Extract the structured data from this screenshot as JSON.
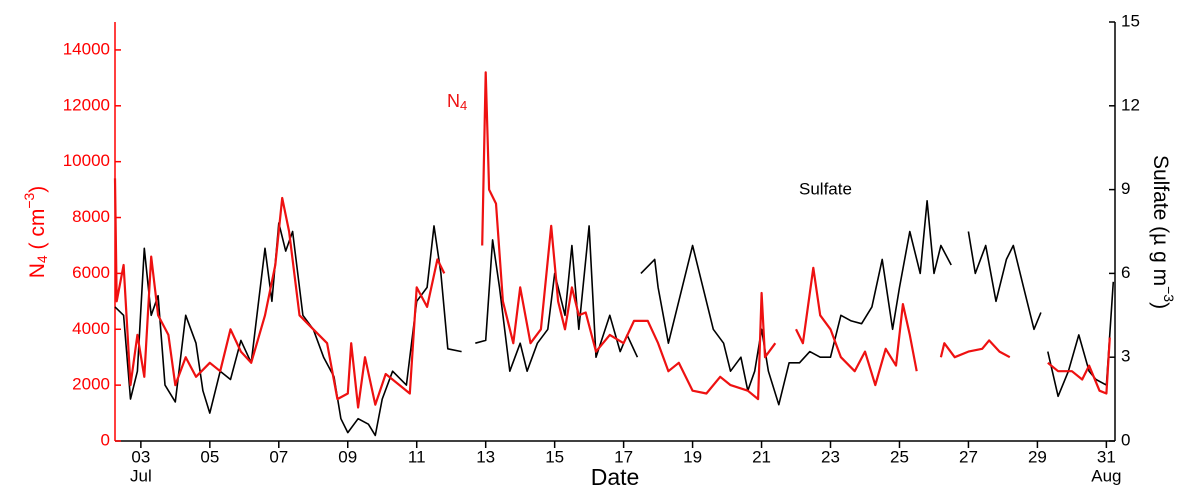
{
  "chart_data": {
    "type": "line",
    "x_label": "Date",
    "y_label": [
      "N",
      "4",
      " ( cm",
      "−3",
      ")"
    ],
    "y2_label": [
      "Sulfate (µ g m",
      "−3",
      ")"
    ],
    "annotations": [
      [
        "N",
        "4"
      ],
      [
        "Sulfate"
      ]
    ],
    "xlim": [
      2.25,
      31.25
    ],
    "xticks": [
      {
        "value": 3,
        "label": "03"
      },
      {
        "value": 5,
        "label": "05"
      },
      {
        "value": 7,
        "label": "07"
      },
      {
        "value": 9,
        "label": "09"
      },
      11,
      13,
      15,
      17,
      19,
      21,
      23,
      25,
      27,
      29,
      31
    ],
    "x_month_labels": [
      "Jul",
      "Aug"
    ],
    "ylim": [
      0,
      15000
    ],
    "yticks": [
      0,
      2000,
      4000,
      6000,
      8000,
      10000,
      12000,
      14000
    ],
    "y2lim": [
      0,
      15
    ],
    "y2ticks": [
      0,
      3,
      6,
      9,
      12,
      15
    ],
    "left_axis_color": "#ff0000",
    "right_axis_color": "#000000",
    "series": [
      {
        "name": "N4",
        "color": "#ee1111",
        "x": [
          2.25,
          2.3,
          2.5,
          2.7,
          2.9,
          3.1,
          3.3,
          3.5,
          3.8,
          4.0,
          4.3,
          4.6,
          5.0,
          5.3,
          5.6,
          5.9,
          6.2,
          6.6,
          6.9,
          7.1,
          7.3,
          7.6,
          8.0,
          8.4,
          8.7,
          9.0,
          9.1,
          9.3,
          9.5,
          9.8,
          10.1,
          10.5,
          10.8,
          11.0,
          11.3,
          11.6,
          11.8,
          12.3,
          12.9,
          13.0,
          13.1,
          13.3,
          13.5,
          13.8,
          14.0,
          14.3,
          14.6,
          14.9,
          15.1,
          15.3,
          15.5,
          15.7,
          15.9,
          16.2,
          16.6,
          17.0,
          17.3,
          17.7,
          18.0,
          18.3,
          18.6,
          19.0,
          19.4,
          19.8,
          20.1,
          20.6,
          20.9,
          21.0,
          21.1,
          21.4,
          21.7,
          22.0,
          22.2,
          22.5,
          22.7,
          23.0,
          23.3,
          23.7,
          24.0,
          24.3,
          24.6,
          24.9,
          25.1,
          25.3,
          25.5,
          25.8,
          26.2,
          26.3,
          26.6,
          27.0,
          27.4,
          27.6,
          27.9,
          28.2,
          28.7,
          29.3,
          29.6,
          30.0,
          30.3,
          30.5,
          30.8,
          31.0,
          31.1
        ],
        "values": [
          9400,
          5000,
          6300,
          2000,
          3800,
          2300,
          6600,
          4500,
          3800,
          2000,
          3000,
          2300,
          2800,
          2500,
          4000,
          3200,
          2800,
          4500,
          6300,
          8700,
          7500,
          4500,
          4000,
          3500,
          1500,
          1700,
          3500,
          1200,
          3000,
          1300,
          2400,
          2000,
          1700,
          5500,
          4800,
          6500,
          6000,
          null,
          7000,
          13200,
          9000,
          8500,
          5000,
          3500,
          5500,
          3500,
          4000,
          7700,
          5000,
          4000,
          5500,
          4500,
          4600,
          3200,
          3800,
          3500,
          4300,
          4300,
          3500,
          2500,
          2800,
          1800,
          1700,
          2300,
          2000,
          1800,
          1500,
          5300,
          3000,
          3500,
          null,
          4000,
          3500,
          6200,
          4500,
          4000,
          3000,
          2500,
          3200,
          2000,
          3300,
          2700,
          4900,
          3800,
          2500,
          null,
          3000,
          3500,
          3000,
          3200,
          3300,
          3600,
          3200,
          3000,
          null,
          2800,
          2500,
          2500,
          2200,
          2700,
          1800,
          1700,
          3700
        ]
      },
      {
        "name": "Sulfate",
        "color": "#000000",
        "axis": "y2",
        "x": [
          2.25,
          2.5,
          2.7,
          2.9,
          3.1,
          3.3,
          3.5,
          3.7,
          4.0,
          4.3,
          4.6,
          4.8,
          5.0,
          5.3,
          5.6,
          5.9,
          6.2,
          6.6,
          6.8,
          7.0,
          7.2,
          7.4,
          7.7,
          8.0,
          8.3,
          8.6,
          8.8,
          9.0,
          9.3,
          9.6,
          9.8,
          10.0,
          10.3,
          10.7,
          11.0,
          11.3,
          11.5,
          11.7,
          11.9,
          12.3,
          12.5,
          12.7,
          13.0,
          13.2,
          13.4,
          13.7,
          14.0,
          14.2,
          14.5,
          14.8,
          15.0,
          15.3,
          15.5,
          15.7,
          16.0,
          16.2,
          16.6,
          16.9,
          17.1,
          17.4,
          17.45,
          17.5,
          17.9,
          18.0,
          18.3,
          18.7,
          19.0,
          19.2,
          19.6,
          19.9,
          20.1,
          20.4,
          20.6,
          20.8,
          21.0,
          21.2,
          21.5,
          21.8,
          22.1,
          22.4,
          22.7,
          23.0,
          23.3,
          23.6,
          23.9,
          24.2,
          24.5,
          24.8,
          25.0,
          25.3,
          25.6,
          25.8,
          26.0,
          26.2,
          26.5,
          26.7,
          27.0,
          27.2,
          27.5,
          27.8,
          28.1,
          28.3,
          28.6,
          28.9,
          29.1,
          29.2,
          29.3,
          29.6,
          29.9,
          30.2,
          30.5,
          30.7,
          31.0,
          31.2
        ],
        "values": [
          4.8,
          4.5,
          1.5,
          2.5,
          6.9,
          4.5,
          5.2,
          2.0,
          1.4,
          4.5,
          3.5,
          1.8,
          1.0,
          2.5,
          2.2,
          3.6,
          2.8,
          6.9,
          5.0,
          7.8,
          6.8,
          7.5,
          4.5,
          4.0,
          3.0,
          2.3,
          0.8,
          0.3,
          0.8,
          0.6,
          0.2,
          1.5,
          2.5,
          2.0,
          5.0,
          5.5,
          7.7,
          6.0,
          3.3,
          3.2,
          null,
          3.5,
          3.6,
          7.2,
          5.5,
          2.5,
          3.5,
          2.5,
          3.5,
          4.0,
          6.0,
          4.5,
          7.0,
          4.0,
          7.7,
          3.0,
          4.5,
          3.2,
          3.8,
          3.0,
          null,
          6.0,
          6.5,
          5.5,
          3.5,
          5.5,
          7.0,
          6.0,
          4.0,
          3.5,
          2.5,
          3.0,
          1.8,
          2.5,
          4.0,
          2.5,
          1.3,
          2.8,
          2.8,
          3.2,
          3.0,
          3.0,
          4.5,
          4.3,
          4.2,
          4.8,
          6.5,
          4.0,
          5.5,
          7.5,
          6.0,
          8.6,
          6.0,
          7.0,
          6.3,
          null,
          7.5,
          6.0,
          7.0,
          5.0,
          6.5,
          7.0,
          5.5,
          4.0,
          4.6,
          null,
          3.2,
          1.6,
          2.5,
          3.8,
          2.5,
          2.2,
          2.0,
          5.7
        ]
      }
    ]
  }
}
